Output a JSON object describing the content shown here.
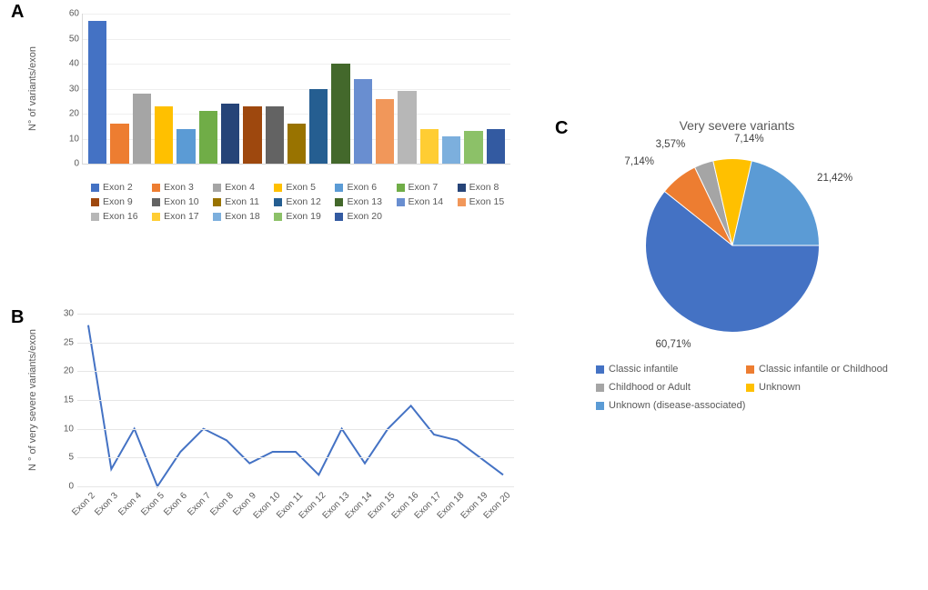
{
  "panelA": {
    "label": "A",
    "type": "bar",
    "ylabel": "N° of variants/exon",
    "ylim": [
      0,
      60
    ],
    "ytick_step": 10,
    "grid_color": "#efefef",
    "axis_color": "#d9d9d9",
    "categories": [
      "Exon 2",
      "Exon 3",
      "Exon 4",
      "Exon 5",
      "Exon 6",
      "Exon 7",
      "Exon 8",
      "Exon 9",
      "Exon 10",
      "Exon 11",
      "Exon 12",
      "Exon 13",
      "Exon 14",
      "Exon 15",
      "Exon 16",
      "Exon 17",
      "Exon 18",
      "Exon 19",
      "Exon 20"
    ],
    "values": [
      57,
      16,
      28,
      23,
      14,
      21,
      24,
      23,
      23,
      16,
      30,
      40,
      34,
      26,
      29,
      14,
      11,
      13,
      14
    ],
    "bar_colors": [
      "#4472c4",
      "#ed7d31",
      "#a5a5a5",
      "#ffc000",
      "#5b9bd5",
      "#70ad47",
      "#264478",
      "#9e480e",
      "#636363",
      "#997300",
      "#255e91",
      "#43682b",
      "#698ed0",
      "#f1975a",
      "#b7b7b7",
      "#ffcd33",
      "#7cafdd",
      "#8cc168",
      "#335aa1"
    ],
    "bar_width": 0.78,
    "label_fontsize": 11,
    "tick_fontsize": 10,
    "background_color": "#ffffff"
  },
  "panelB": {
    "label": "B",
    "type": "line",
    "ylabel": "N ° of very severe variants/exon",
    "ylim": [
      0,
      30
    ],
    "ytick_step": 5,
    "grid_color": "#e6e6e6",
    "line_color": "#4472c4",
    "line_width": 2,
    "categories": [
      "Exon 2",
      "Exon 3",
      "Exon 4",
      "Exon 5",
      "Exon 6",
      "Exon 7",
      "Exon 8",
      "Exon 9",
      "Exon 10",
      "Exon 11",
      "Exon 12",
      "Exon 13",
      "Exon 14",
      "Exon 15",
      "Exon 16",
      "Exon 17",
      "Exon 18",
      "Exon 19",
      "Exon 20"
    ],
    "values": [
      28,
      3,
      10,
      0,
      6,
      10,
      8,
      4,
      6,
      6,
      2,
      10,
      4,
      10,
      14,
      9,
      8,
      5,
      2
    ],
    "label_fontsize": 11,
    "tick_fontsize": 10,
    "xlabel_rotation": -45,
    "background_color": "#ffffff"
  },
  "panelC": {
    "label": "C",
    "type": "pie",
    "title": "Very severe variants",
    "title_fontsize": 14,
    "background_color": "#ffffff",
    "slices": [
      {
        "label": "Classic infantile",
        "value": 60.71,
        "display": "60,71%",
        "color": "#4472c4"
      },
      {
        "label": "Classic infantile or Childhood",
        "value": 7.14,
        "display": "7,14%",
        "color": "#ed7d31"
      },
      {
        "label": "Childhood or Adult",
        "value": 3.57,
        "display": "3,57%",
        "color": "#a5a5a5"
      },
      {
        "label": "Unknown",
        "value": 7.14,
        "display": "7,14%",
        "color": "#ffc000"
      },
      {
        "label": "Unknown (disease-associated)",
        "value": 21.42,
        "display": "21,42%",
        "color": "#5b9bd5"
      }
    ],
    "label_fontsize": 11.5,
    "start_angle_deg": 0
  }
}
